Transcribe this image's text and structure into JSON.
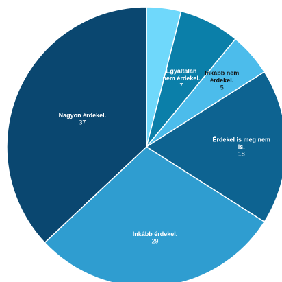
{
  "chart_data": {
    "type": "pie",
    "title": "",
    "slices": [
      {
        "label": "",
        "value": 4,
        "color": "#6fd8fb"
      },
      {
        "label": "Egyáltalán nem érdekel.",
        "lines": [
          "Egyáltalán",
          "nem érdekel."
        ],
        "value": 7,
        "color": "#0b7fa9"
      },
      {
        "label": "Inkább nem érdekel.",
        "lines": [
          "Inkább nem",
          "érdekel."
        ],
        "value": 5,
        "color": "#4cbceb",
        "dark_label": true
      },
      {
        "label": "Érdekel is meg nem is.",
        "lines": [
          "Érdekel is meg nem",
          "is."
        ],
        "value": 18,
        "color": "#0d6391"
      },
      {
        "label": "Inkább érdekel.",
        "lines": [
          "Inkább érdekel."
        ],
        "value": 29,
        "color": "#2f9dd0"
      },
      {
        "label": "Nagyon érdekel.",
        "lines": [
          "Nagyon érdekel."
        ],
        "value": 37,
        "color": "#0a4770"
      }
    ]
  }
}
